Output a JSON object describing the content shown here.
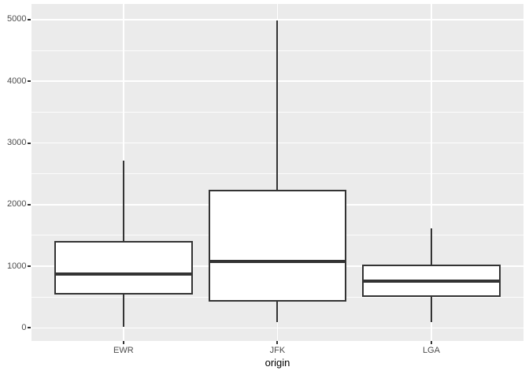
{
  "chart_data": {
    "type": "boxplot",
    "title": "",
    "xlabel": "origin",
    "ylabel": "",
    "categories": [
      "EWR",
      "JFK",
      "LGA"
    ],
    "series": [
      {
        "name": "EWR",
        "min": 17,
        "q1": 540,
        "median": 872,
        "q3": 1415,
        "max": 2710
      },
      {
        "name": "JFK",
        "min": 94,
        "q1": 425,
        "median": 1075,
        "q3": 2245,
        "max": 4983
      },
      {
        "name": "LGA",
        "min": 96,
        "q1": 500,
        "median": 762,
        "q3": 1030,
        "max": 1620
      }
    ],
    "ylim": [
      -215,
      5260
    ],
    "yticks": [
      0,
      1000,
      2000,
      3000,
      4000,
      5000
    ],
    "ytick_labels": [
      "0",
      "1000",
      "2000",
      "3000",
      "4000",
      "5000"
    ],
    "yticks_minor": [
      500,
      1500,
      2500,
      3500,
      4500
    ],
    "grid": true,
    "legend": false,
    "outliers_shown": false,
    "colors": {
      "panel_bg": "#EBEBEB",
      "grid_major": "#FFFFFF",
      "grid_minor": "#FFFFFF",
      "box_line": "#333333",
      "box_fill": "#FFFFFF",
      "tick_mark": "#333333",
      "tick_label": "#4D4D4D",
      "axis_title": "#000000"
    }
  }
}
